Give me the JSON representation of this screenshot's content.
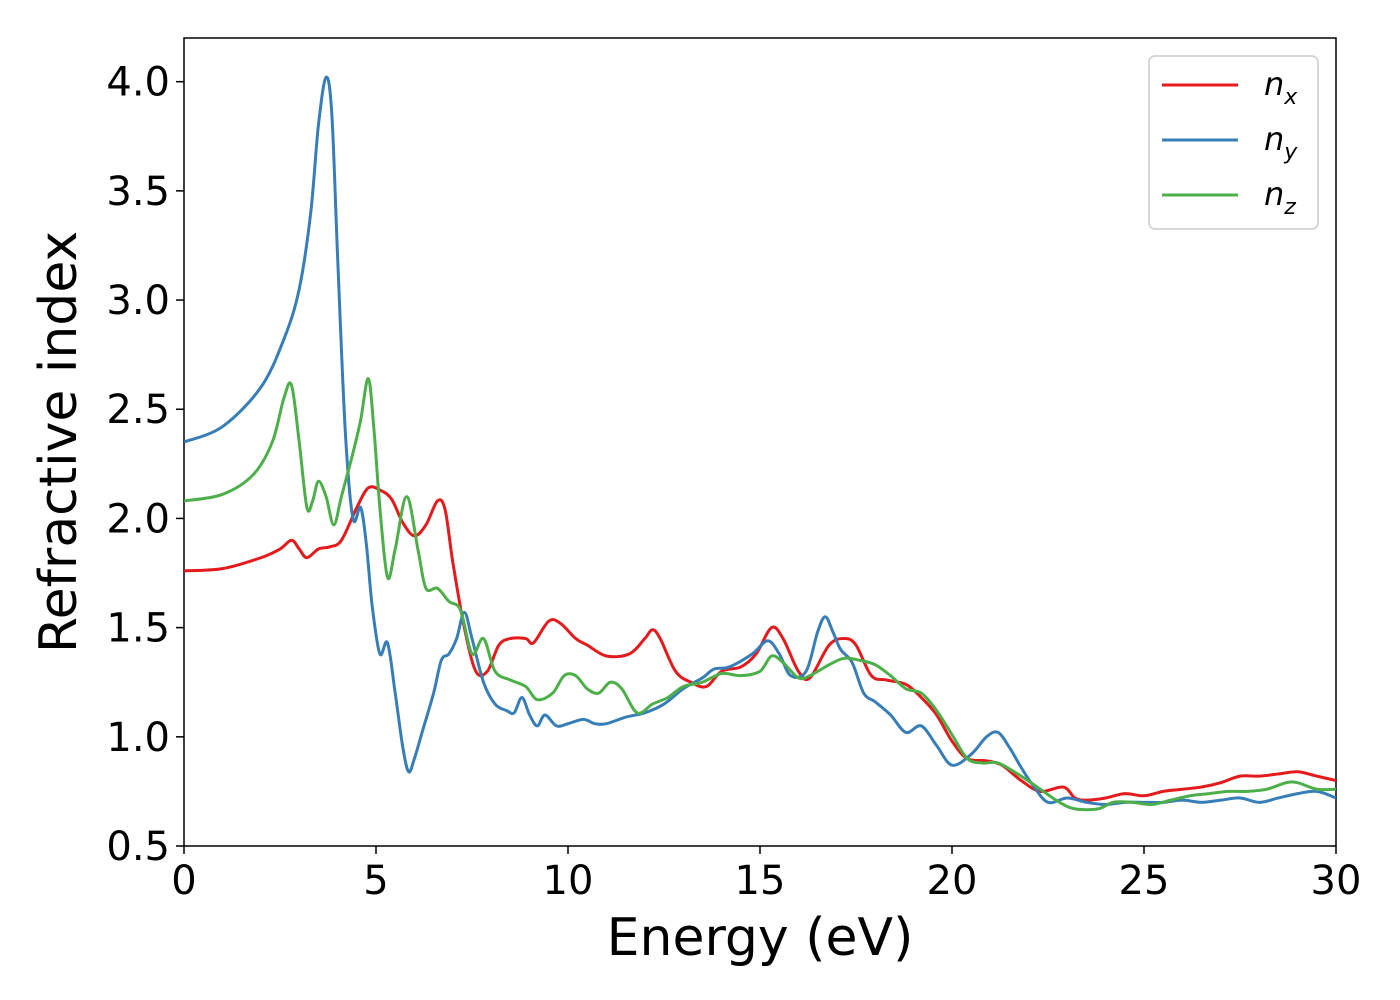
{
  "chart_data": {
    "type": "line",
    "xlabel": "Energy (eV)",
    "ylabel": "Refractive index",
    "xlim": [
      0,
      30
    ],
    "ylim": [
      0.5,
      4.2
    ],
    "xticks": [
      "0",
      "5",
      "10",
      "15",
      "20",
      "25",
      "30"
    ],
    "yticks": [
      "0.5",
      "1.0",
      "1.5",
      "2.0",
      "2.5",
      "3.0",
      "3.5",
      "4.0"
    ],
    "grid": false,
    "legend_position": "top-right",
    "series": [
      {
        "name": "n",
        "subscript": "x",
        "color": "#e41a1c",
        "points": [
          [
            0,
            1.76
          ],
          [
            1,
            1.77
          ],
          [
            2,
            1.82
          ],
          [
            2.5,
            1.86
          ],
          [
            2.8,
            1.9
          ],
          [
            3.0,
            1.86
          ],
          [
            3.2,
            1.82
          ],
          [
            3.5,
            1.86
          ],
          [
            3.8,
            1.87
          ],
          [
            4.1,
            1.9
          ],
          [
            4.5,
            2.05
          ],
          [
            4.8,
            2.14
          ],
          [
            5.1,
            2.13
          ],
          [
            5.4,
            2.09
          ],
          [
            5.7,
            1.98
          ],
          [
            6.0,
            1.92
          ],
          [
            6.3,
            1.97
          ],
          [
            6.6,
            2.08
          ],
          [
            6.8,
            2.04
          ],
          [
            7.0,
            1.8
          ],
          [
            7.3,
            1.5
          ],
          [
            7.6,
            1.3
          ],
          [
            7.9,
            1.3
          ],
          [
            8.2,
            1.42
          ],
          [
            8.5,
            1.45
          ],
          [
            8.9,
            1.45
          ],
          [
            9.1,
            1.43
          ],
          [
            9.5,
            1.53
          ],
          [
            9.8,
            1.52
          ],
          [
            10.2,
            1.45
          ],
          [
            10.5,
            1.42
          ],
          [
            11.0,
            1.37
          ],
          [
            11.6,
            1.38
          ],
          [
            12.0,
            1.45
          ],
          [
            12.2,
            1.49
          ],
          [
            12.4,
            1.45
          ],
          [
            12.8,
            1.3
          ],
          [
            13.2,
            1.25
          ],
          [
            13.6,
            1.23
          ],
          [
            14.0,
            1.3
          ],
          [
            14.5,
            1.32
          ],
          [
            14.9,
            1.38
          ],
          [
            15.3,
            1.5
          ],
          [
            15.6,
            1.45
          ],
          [
            16.0,
            1.3
          ],
          [
            16.3,
            1.27
          ],
          [
            16.8,
            1.42
          ],
          [
            17.2,
            1.45
          ],
          [
            17.5,
            1.42
          ],
          [
            17.9,
            1.28
          ],
          [
            18.3,
            1.26
          ],
          [
            18.8,
            1.24
          ],
          [
            19.2,
            1.18
          ],
          [
            19.6,
            1.1
          ],
          [
            20.0,
            0.98
          ],
          [
            20.4,
            0.9
          ],
          [
            20.9,
            0.89
          ],
          [
            21.3,
            0.87
          ],
          [
            21.8,
            0.8
          ],
          [
            22.3,
            0.75
          ],
          [
            22.9,
            0.77
          ],
          [
            23.2,
            0.72
          ],
          [
            23.5,
            0.71
          ],
          [
            24.0,
            0.72
          ],
          [
            24.5,
            0.74
          ],
          [
            25.0,
            0.73
          ],
          [
            25.5,
            0.75
          ],
          [
            26.0,
            0.76
          ],
          [
            26.5,
            0.77
          ],
          [
            27.0,
            0.79
          ],
          [
            27.5,
            0.82
          ],
          [
            28.0,
            0.82
          ],
          [
            28.5,
            0.83
          ],
          [
            29.0,
            0.84
          ],
          [
            29.5,
            0.82
          ],
          [
            30,
            0.8
          ]
        ]
      },
      {
        "name": "n",
        "subscript": "y",
        "color": "#377eb8",
        "points": [
          [
            0,
            2.35
          ],
          [
            1,
            2.42
          ],
          [
            2,
            2.6
          ],
          [
            2.6,
            2.82
          ],
          [
            3.0,
            3.05
          ],
          [
            3.3,
            3.4
          ],
          [
            3.5,
            3.8
          ],
          [
            3.7,
            4.02
          ],
          [
            3.85,
            3.85
          ],
          [
            4.0,
            3.2
          ],
          [
            4.2,
            2.4
          ],
          [
            4.4,
            2.0
          ],
          [
            4.6,
            2.05
          ],
          [
            4.75,
            1.88
          ],
          [
            4.9,
            1.6
          ],
          [
            5.1,
            1.38
          ],
          [
            5.3,
            1.43
          ],
          [
            5.5,
            1.2
          ],
          [
            5.7,
            0.95
          ],
          [
            5.85,
            0.84
          ],
          [
            6.0,
            0.9
          ],
          [
            6.2,
            1.02
          ],
          [
            6.5,
            1.2
          ],
          [
            6.7,
            1.35
          ],
          [
            6.9,
            1.38
          ],
          [
            7.1,
            1.45
          ],
          [
            7.3,
            1.57
          ],
          [
            7.5,
            1.45
          ],
          [
            7.8,
            1.25
          ],
          [
            8.1,
            1.15
          ],
          [
            8.4,
            1.12
          ],
          [
            8.6,
            1.11
          ],
          [
            8.8,
            1.18
          ],
          [
            9.0,
            1.1
          ],
          [
            9.2,
            1.05
          ],
          [
            9.4,
            1.1
          ],
          [
            9.7,
            1.05
          ],
          [
            10.0,
            1.06
          ],
          [
            10.4,
            1.08
          ],
          [
            10.7,
            1.06
          ],
          [
            11.0,
            1.06
          ],
          [
            11.5,
            1.09
          ],
          [
            12.0,
            1.11
          ],
          [
            12.5,
            1.15
          ],
          [
            13.0,
            1.22
          ],
          [
            13.5,
            1.27
          ],
          [
            13.8,
            1.31
          ],
          [
            14.2,
            1.32
          ],
          [
            14.8,
            1.38
          ],
          [
            15.2,
            1.44
          ],
          [
            15.5,
            1.38
          ],
          [
            15.8,
            1.28
          ],
          [
            16.2,
            1.3
          ],
          [
            16.5,
            1.48
          ],
          [
            16.7,
            1.55
          ],
          [
            16.9,
            1.48
          ],
          [
            17.1,
            1.4
          ],
          [
            17.4,
            1.34
          ],
          [
            17.7,
            1.2
          ],
          [
            18.0,
            1.16
          ],
          [
            18.4,
            1.1
          ],
          [
            18.8,
            1.02
          ],
          [
            19.2,
            1.05
          ],
          [
            19.6,
            0.96
          ],
          [
            20.0,
            0.87
          ],
          [
            20.5,
            0.92
          ],
          [
            20.9,
            1.0
          ],
          [
            21.2,
            1.02
          ],
          [
            21.5,
            0.95
          ],
          [
            21.8,
            0.86
          ],
          [
            22.1,
            0.78
          ],
          [
            22.5,
            0.7
          ],
          [
            23.0,
            0.72
          ],
          [
            23.5,
            0.7
          ],
          [
            24.0,
            0.69
          ],
          [
            24.5,
            0.7
          ],
          [
            25.0,
            0.7
          ],
          [
            25.5,
            0.7
          ],
          [
            26.0,
            0.71
          ],
          [
            26.5,
            0.7
          ],
          [
            27.0,
            0.71
          ],
          [
            27.5,
            0.72
          ],
          [
            28.0,
            0.7
          ],
          [
            28.5,
            0.72
          ],
          [
            29.0,
            0.74
          ],
          [
            29.5,
            0.75
          ],
          [
            30,
            0.72
          ]
        ]
      },
      {
        "name": "n",
        "subscript": "z",
        "color": "#4daf4a",
        "points": [
          [
            0,
            2.08
          ],
          [
            1,
            2.11
          ],
          [
            1.8,
            2.2
          ],
          [
            2.3,
            2.35
          ],
          [
            2.6,
            2.55
          ],
          [
            2.8,
            2.61
          ],
          [
            3.0,
            2.35
          ],
          [
            3.2,
            2.05
          ],
          [
            3.35,
            2.08
          ],
          [
            3.5,
            2.17
          ],
          [
            3.7,
            2.1
          ],
          [
            3.9,
            1.97
          ],
          [
            4.1,
            2.1
          ],
          [
            4.4,
            2.3
          ],
          [
            4.6,
            2.45
          ],
          [
            4.8,
            2.64
          ],
          [
            4.95,
            2.4
          ],
          [
            5.1,
            2.05
          ],
          [
            5.3,
            1.73
          ],
          [
            5.5,
            1.86
          ],
          [
            5.8,
            2.1
          ],
          [
            6.1,
            1.85
          ],
          [
            6.3,
            1.68
          ],
          [
            6.6,
            1.68
          ],
          [
            6.9,
            1.62
          ],
          [
            7.2,
            1.58
          ],
          [
            7.5,
            1.38
          ],
          [
            7.8,
            1.45
          ],
          [
            8.1,
            1.3
          ],
          [
            8.5,
            1.26
          ],
          [
            8.9,
            1.23
          ],
          [
            9.2,
            1.17
          ],
          [
            9.6,
            1.2
          ],
          [
            9.9,
            1.28
          ],
          [
            10.2,
            1.28
          ],
          [
            10.5,
            1.22
          ],
          [
            10.8,
            1.2
          ],
          [
            11.1,
            1.25
          ],
          [
            11.4,
            1.22
          ],
          [
            11.8,
            1.11
          ],
          [
            12.2,
            1.15
          ],
          [
            12.6,
            1.18
          ],
          [
            13.0,
            1.23
          ],
          [
            13.5,
            1.25
          ],
          [
            14.0,
            1.29
          ],
          [
            14.5,
            1.28
          ],
          [
            15.0,
            1.3
          ],
          [
            15.3,
            1.37
          ],
          [
            15.6,
            1.34
          ],
          [
            16.0,
            1.27
          ],
          [
            16.3,
            1.28
          ],
          [
            16.8,
            1.33
          ],
          [
            17.2,
            1.36
          ],
          [
            17.6,
            1.35
          ],
          [
            18.0,
            1.33
          ],
          [
            18.4,
            1.28
          ],
          [
            18.8,
            1.22
          ],
          [
            19.2,
            1.2
          ],
          [
            19.6,
            1.12
          ],
          [
            20.0,
            1.01
          ],
          [
            20.4,
            0.9
          ],
          [
            20.8,
            0.88
          ],
          [
            21.2,
            0.88
          ],
          [
            21.8,
            0.82
          ],
          [
            22.3,
            0.76
          ],
          [
            22.8,
            0.7
          ],
          [
            23.2,
            0.67
          ],
          [
            23.8,
            0.67
          ],
          [
            24.2,
            0.7
          ],
          [
            24.7,
            0.7
          ],
          [
            25.2,
            0.69
          ],
          [
            25.7,
            0.71
          ],
          [
            26.2,
            0.73
          ],
          [
            26.7,
            0.74
          ],
          [
            27.2,
            0.75
          ],
          [
            27.7,
            0.75
          ],
          [
            28.2,
            0.76
          ],
          [
            28.7,
            0.79
          ],
          [
            29.0,
            0.79
          ],
          [
            29.5,
            0.76
          ],
          [
            30,
            0.76
          ]
        ]
      }
    ]
  }
}
